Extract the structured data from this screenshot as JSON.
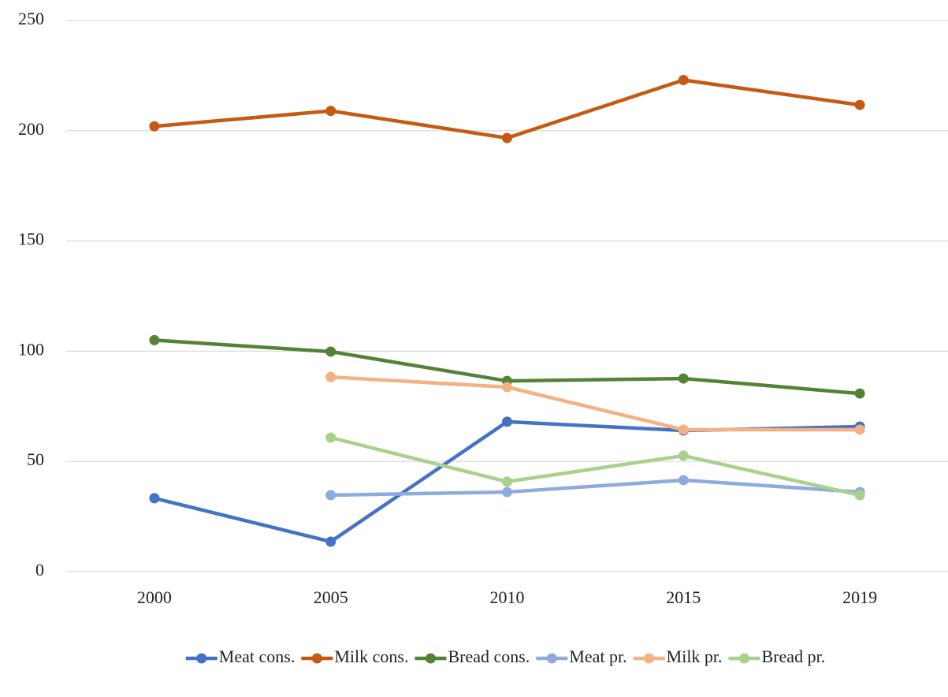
{
  "chart_data": {
    "type": "line",
    "categories": [
      "2000",
      "2005",
      "2010",
      "2015",
      "2019"
    ],
    "series": [
      {
        "name": "Meat cons.",
        "color": "#4472c4",
        "values": [
          33.3,
          13.6,
          68,
          64,
          65.8
        ]
      },
      {
        "name": "Milk cons.",
        "color": "#c55a11",
        "values": [
          202,
          209,
          196.7,
          223,
          211.7
        ]
      },
      {
        "name": "Bread cons.",
        "color": "#548235",
        "values": [
          105,
          99.8,
          86.5,
          87.6,
          80.8
        ]
      },
      {
        "name": "Meat pr.",
        "color": "#8faadc",
        "values": [
          null,
          34.7,
          36.1,
          41.5,
          36.1
        ]
      },
      {
        "name": "Milk pr.",
        "color": "#f4b183",
        "values": [
          null,
          88.3,
          83.7,
          64.4,
          64.4
        ]
      },
      {
        "name": "Bread pr.",
        "color": "#a9d18e",
        "values": [
          null,
          60.8,
          40.8,
          52.6,
          34.7
        ]
      }
    ],
    "ylim": [
      0,
      250
    ],
    "yticks": [
      0,
      50,
      100,
      150,
      200,
      250
    ],
    "grid": true,
    "legend": "bottom"
  }
}
